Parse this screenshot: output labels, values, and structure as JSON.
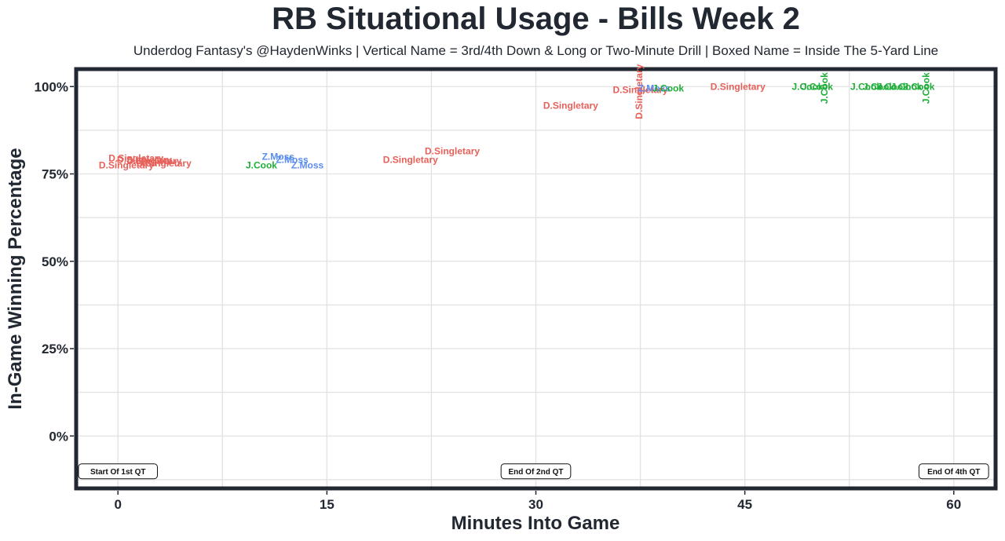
{
  "title": "RB Situational Usage - Bills Week 2",
  "subtitle": "Underdog Fantasy's @HaydenWinks | Vertical Name = 3rd/4th Down & Long or Two-Minute Drill | Boxed Name = Inside The 5-Yard Line",
  "colors": {
    "D.Singletary": "#e8605a",
    "Z.Moss": "#5b8def",
    "J.Cook": "#1fae3a",
    "frame": "#222831",
    "grid": "#e2e2e2"
  },
  "chart_data": {
    "type": "scatter",
    "title": "RB Situational Usage - Bills Week 2",
    "subtitle": "Underdog Fantasy's @HaydenWinks | Vertical Name = 3rd/4th Down & Long or Two-Minute Drill | Boxed Name = Inside The 5-Yard Line",
    "xlabel": "Minutes Into Game",
    "ylabel": "In-Game Winning Percentage",
    "xlim": [
      -3,
      63
    ],
    "ylim": [
      -15,
      105
    ],
    "x_ticks": [
      0,
      15,
      30,
      45,
      60
    ],
    "y_ticks": [
      0,
      25,
      50,
      75,
      100
    ],
    "y_tick_labels": [
      "0%",
      "25%",
      "50%",
      "75%",
      "100%"
    ],
    "grid": true,
    "annotations": [
      {
        "x": 0,
        "y": -10,
        "text": "Start Of 1st QT"
      },
      {
        "x": 30,
        "y": -10,
        "text": "End Of 2nd QT"
      },
      {
        "x": 60,
        "y": -10,
        "text": "End Of 4th QT"
      }
    ],
    "series": [
      {
        "name": "D.Singletary",
        "points": [
          {
            "x": 1.3,
            "y": 79.5
          },
          {
            "x": 1.9,
            "y": 79.0
          },
          {
            "x": 2.6,
            "y": 78.7
          },
          {
            "x": 3.3,
            "y": 78.0
          },
          {
            "x": 0.6,
            "y": 77.5
          },
          {
            "x": 24.0,
            "y": 81.5
          },
          {
            "x": 21.0,
            "y": 79.0
          },
          {
            "x": 32.5,
            "y": 94.5
          },
          {
            "x": 37.5,
            "y": 99.0
          },
          {
            "x": 37.4,
            "y": 99.0,
            "vertical": true
          },
          {
            "x": 44.5,
            "y": 100.0
          }
        ]
      },
      {
        "name": "Z.Moss",
        "points": [
          {
            "x": 11.5,
            "y": 80.0
          },
          {
            "x": 12.5,
            "y": 79.0
          },
          {
            "x": 13.6,
            "y": 77.5
          },
          {
            "x": 38.5,
            "y": 99.5
          }
        ]
      },
      {
        "name": "J.Cook",
        "points": [
          {
            "x": 10.3,
            "y": 77.5
          },
          {
            "x": 39.5,
            "y": 99.5
          },
          {
            "x": 49.5,
            "y": 100.0
          },
          {
            "x": 50.2,
            "y": 100.0
          },
          {
            "x": 50.7,
            "y": 100.0,
            "vertical": true
          },
          {
            "x": 53.7,
            "y": 100.0
          },
          {
            "x": 54.6,
            "y": 100.0
          },
          {
            "x": 55.6,
            "y": 100.0
          },
          {
            "x": 56.6,
            "y": 100.0
          },
          {
            "x": 57.5,
            "y": 100.0
          },
          {
            "x": 58.0,
            "y": 100.0,
            "vertical": true
          }
        ]
      }
    ]
  }
}
